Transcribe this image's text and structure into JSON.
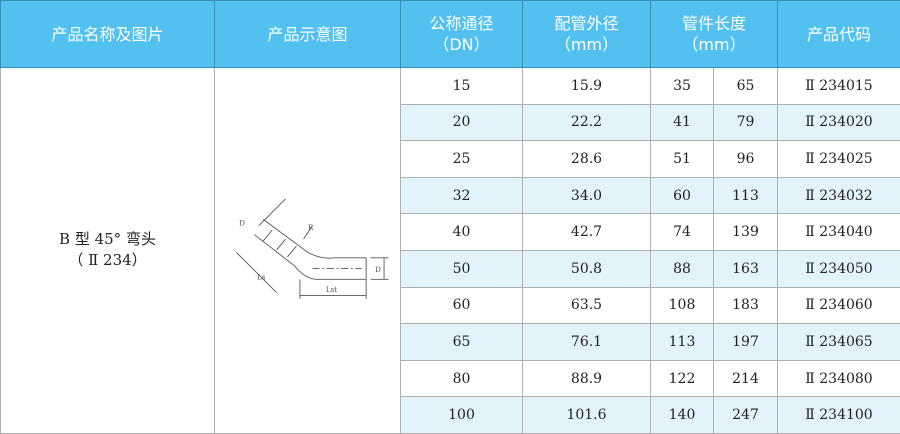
{
  "header": {
    "name": "产品名称及图片",
    "diagram": "产品示意图",
    "dn": "公称通径",
    "dn_unit": "（DN）",
    "od": "配管外径",
    "od_unit": "（mm）",
    "len": "管件长度",
    "len_unit": "（mm）",
    "code": "产品代码"
  },
  "product": {
    "name": "B 型 45° 弯头",
    "model": "（ Ⅱ 234）"
  },
  "diagram_labels": {
    "d": "D",
    "r": "R",
    "ls": "Ls",
    "lst": "Lst"
  },
  "rows": [
    [
      "15",
      "15.9",
      "35",
      "65",
      "Ⅱ 234015"
    ],
    [
      "20",
      "22.2",
      "41",
      "79",
      "Ⅱ 234020"
    ],
    [
      "25",
      "28.6",
      "51",
      "96",
      "Ⅱ 234025"
    ],
    [
      "32",
      "34.0",
      "60",
      "113",
      "Ⅱ 234032"
    ],
    [
      "40",
      "42.7",
      "74",
      "139",
      "Ⅱ 234040"
    ],
    [
      "50",
      "50.8",
      "88",
      "163",
      "Ⅱ 234050"
    ],
    [
      "60",
      "63.5",
      "108",
      "183",
      "Ⅱ 234060"
    ],
    [
      "65",
      "76.1",
      "113",
      "197",
      "Ⅱ 234065"
    ],
    [
      "80",
      "88.9",
      "122",
      "214",
      "Ⅱ 234080"
    ],
    [
      "100",
      "101.6",
      "140",
      "247",
      "Ⅱ 234100"
    ]
  ],
  "colors": {
    "header": "#53c1ef",
    "alt_row": "#e2f3fc"
  }
}
